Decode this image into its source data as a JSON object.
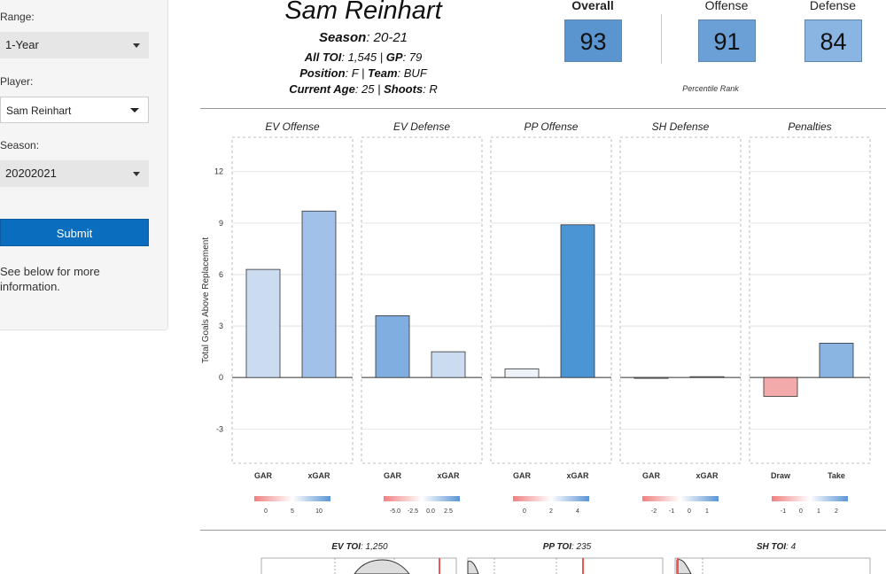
{
  "sidebar": {
    "range_label": "Range:",
    "range_value": "1-Year",
    "player_label": "Player:",
    "player_value": "Sam Reinhart",
    "season_label": "Season:",
    "season_value": "20202021",
    "submit_label": "Submit",
    "note": "See below for more information."
  },
  "player": {
    "name": "Sam Reinhart",
    "season_label": "Season",
    "season_value": ": 20-21",
    "toi_label": "All TOI",
    "toi_value": ": 1,545 | ",
    "gp_label": "GP",
    "gp_value": ": 79",
    "position_label": "Position",
    "position_value": ": F | ",
    "team_label": "Team",
    "team_value": ": BUF",
    "age_label": "Current Age",
    "age_value": ": 25 | ",
    "shoots_label": "Shoots",
    "shoots_value": ": R"
  },
  "scores": {
    "overall_label": "Overall",
    "overall_value": "93",
    "offense_label": "Offense",
    "offense_value": "91",
    "defense_label": "Defense",
    "defense_value": "84",
    "percentile_label": "Percentile Rank",
    "colors": {
      "overall": "#5b95cf",
      "offense": "#6aa0d6",
      "defense": "#8ab5e2"
    }
  },
  "chart_data": {
    "type": "bar",
    "ylabel": "Total Goals Above Replacement",
    "ylim": [
      -5,
      14
    ],
    "yticks": [
      -3,
      0,
      3,
      6,
      9,
      12
    ],
    "grid": true,
    "panels": [
      {
        "title": "EV Offense",
        "categories": [
          "GAR",
          "xGAR"
        ],
        "values": [
          6.3,
          9.7
        ],
        "colors": [
          "#ccdcf0",
          "#a2c1e8"
        ],
        "scale_ticks": [
          "0",
          "5",
          "10"
        ]
      },
      {
        "title": "EV Defense",
        "categories": [
          "GAR",
          "xGAR"
        ],
        "values": [
          3.6,
          1.5
        ],
        "colors": [
          "#80aee0",
          "#ccdcf0"
        ],
        "scale_ticks": [
          "-5.0",
          "-2.5",
          "0.0",
          "2.5"
        ]
      },
      {
        "title": "PP Offense",
        "categories": [
          "GAR",
          "xGAR"
        ],
        "values": [
          0.5,
          8.9
        ],
        "colors": [
          "#eef3fa",
          "#4c95d5"
        ],
        "scale_ticks": [
          "0",
          "2",
          "4"
        ]
      },
      {
        "title": "SH Defense",
        "categories": [
          "GAR",
          "xGAR"
        ],
        "values": [
          -0.05,
          0.05
        ],
        "colors": [
          "#eeeeee",
          "#eeeeee"
        ],
        "scale_ticks": [
          "-2",
          "-1",
          "0",
          "1"
        ]
      },
      {
        "title": "Penalties",
        "categories": [
          "Draw",
          "Take"
        ],
        "values": [
          -1.1,
          2.0
        ],
        "colors": [
          "#f3aaaa",
          "#8ab5e2"
        ],
        "scale_ticks": [
          "-1",
          "0",
          "1",
          "2"
        ]
      }
    ]
  },
  "toi_panels": [
    {
      "label": "EV TOI",
      "value": ": 1,250"
    },
    {
      "label": "PP TOI",
      "value": ": 235"
    },
    {
      "label": "SH TOI",
      "value": ": 4"
    }
  ]
}
